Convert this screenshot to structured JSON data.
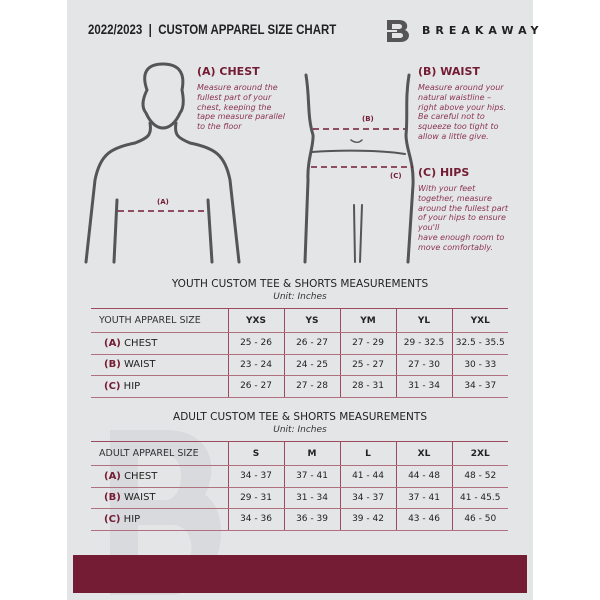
{
  "header": {
    "title": "2022/2023  |  CUSTOM APPAREL SIZE CHART",
    "brand": "BREAKAWAY"
  },
  "guide": {
    "chest": {
      "heading": "(A) CHEST",
      "lines": [
        "Measure around the",
        "fullest part of your",
        "chest, keeping the",
        "tape measure parallel",
        "to the floor"
      ],
      "marker": "(A)"
    },
    "waist": {
      "heading": "(B) WAIST",
      "lines": [
        "Measure around your",
        "natural waistline –",
        "right above your hips.",
        "Be careful not to",
        "squeeze too tight to",
        "allow a little give."
      ],
      "marker": "(B)"
    },
    "hips": {
      "heading": "(C) HIPS",
      "lines": [
        "With your feet",
        "together, measure",
        "around the fullest part",
        "of your hips to ensure",
        "you'll",
        "have enough room to",
        "move comfortably."
      ],
      "marker": "(C)"
    }
  },
  "youth": {
    "title": "YOUTH CUSTOM TEE & SHORTS MEASUREMENTS",
    "unit": "Unit: Inches",
    "header": [
      "YOUTH APPAREL SIZE",
      "YXS",
      "YS",
      "YM",
      "YL",
      "YXL"
    ],
    "rows": [
      {
        "label": "(A)",
        "name": "CHEST",
        "values": [
          "25 - 26",
          "26 - 27",
          "27 - 29",
          "29 - 32.5",
          "32.5 - 35.5"
        ]
      },
      {
        "label": "(B)",
        "name": "WAIST",
        "values": [
          "23 - 24",
          "24 - 25",
          "25 - 27",
          "27 - 30",
          "30 - 33"
        ]
      },
      {
        "label": "(C)",
        "name": "HIP",
        "values": [
          "26 - 27",
          "27 - 28",
          "28 - 31",
          "31 - 34",
          "34 - 37"
        ]
      }
    ]
  },
  "adult": {
    "title": "ADULT CUSTOM TEE & SHORTS MEASUREMENTS",
    "unit": "Unit: Inches",
    "header": [
      "ADULT APPAREL SIZE",
      "S",
      "M",
      "L",
      "XL",
      "2XL"
    ],
    "rows": [
      {
        "label": "(A)",
        "name": "CHEST",
        "values": [
          "34 - 37",
          "37 - 41",
          "41 - 44",
          "44 - 48",
          "48 - 52"
        ]
      },
      {
        "label": "(B)",
        "name": "WAIST",
        "values": [
          "29 - 31",
          "31 - 34",
          "34 - 37",
          "37 - 41",
          "41 - 45.5"
        ]
      },
      {
        "label": "(C)",
        "name": "HIP",
        "values": [
          "34 - 36",
          "36 - 39",
          "39 - 42",
          "43 - 46",
          "46 - 50"
        ]
      }
    ]
  },
  "colors": {
    "accent": "#731c33",
    "background": "#e4e5e7"
  }
}
